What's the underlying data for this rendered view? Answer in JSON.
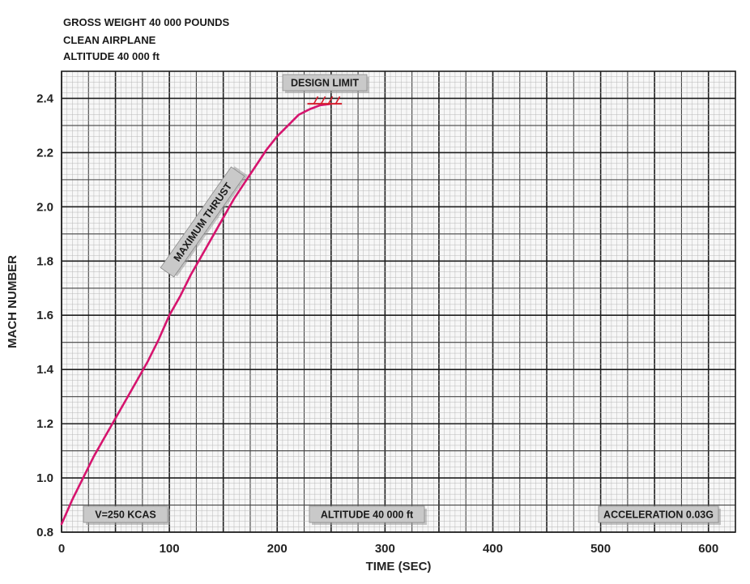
{
  "header_lines": [
    "GROSS WEIGHT 40 000 POUNDS",
    "CLEAN AIRPLANE",
    "ALTITUDE 40 000 ft"
  ],
  "chart_data": {
    "type": "line",
    "xlabel": "TIME (SEC)",
    "ylabel": "MACH NUMBER",
    "xlim": [
      0,
      625
    ],
    "ylim": [
      0.8,
      2.5
    ],
    "x_ticks": [
      "0",
      "100",
      "200",
      "300",
      "400",
      "500",
      "600"
    ],
    "y_ticks": [
      "0.8",
      "1.0",
      "1.2",
      "1.4",
      "1.6",
      "1.8",
      "2.0",
      "2.2",
      "2.4"
    ],
    "grid": true,
    "series": [
      {
        "name": "MAXIMUM THRUST",
        "color": "#d6146e",
        "x": [
          0,
          10,
          20,
          30,
          40,
          50,
          60,
          70,
          80,
          90,
          100,
          110,
          120,
          130,
          140,
          150,
          160,
          170,
          180,
          190,
          200,
          210,
          220,
          230,
          240,
          250
        ],
        "y": [
          0.83,
          0.92,
          1.0,
          1.08,
          1.15,
          1.22,
          1.29,
          1.36,
          1.43,
          1.51,
          1.6,
          1.67,
          1.75,
          1.82,
          1.89,
          1.96,
          2.03,
          2.09,
          2.15,
          2.21,
          2.26,
          2.3,
          2.34,
          2.36,
          2.375,
          2.38
        ]
      }
    ],
    "design_limit": {
      "label": "DESIGN LIMIT",
      "mach": 2.38,
      "x_from": 228,
      "x_to": 260
    },
    "annotations": [
      {
        "text": "DESIGN LIMIT"
      },
      {
        "text": "MAXIMUM THRUST"
      },
      {
        "text": "V=250 KCAS"
      },
      {
        "text": "ALTITUDE 40 000 ft"
      },
      {
        "text": "ACCELERATION 0.03G"
      }
    ]
  }
}
